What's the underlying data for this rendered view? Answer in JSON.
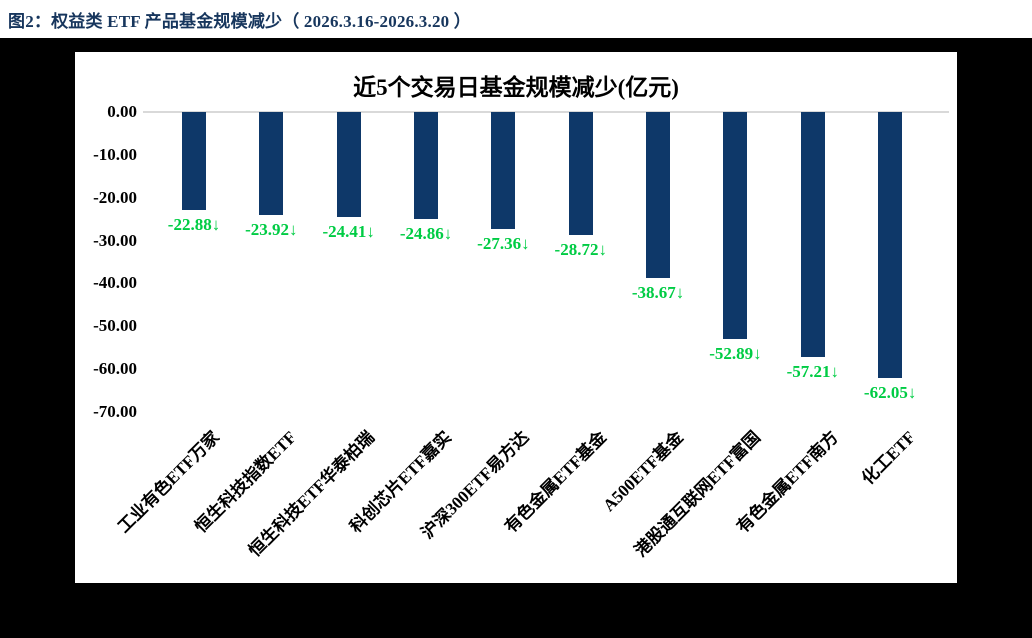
{
  "header": {
    "title": "图2：权益类 ETF 产品基金规模减少（ 2026.3.16-2026.3.20 ）"
  },
  "chart_data": {
    "type": "bar",
    "title": "近5个交易日基金规模减少(亿元)",
    "categories": [
      "工业有色ETF万家",
      "恒生科技指数ETF",
      "恒生科技ETF华泰柏瑞",
      "科创芯片ETF嘉实",
      "沪深300ETF易方达",
      "有色金属ETF基金",
      "A500ETF基金",
      "港股通互联网ETF富国",
      "有色金属ETF南方",
      "化工ETF"
    ],
    "values": [
      -22.88,
      -23.92,
      -24.41,
      -24.86,
      -27.36,
      -28.72,
      -38.67,
      -52.89,
      -57.21,
      -62.05
    ],
    "data_labels": [
      "-22.88↓",
      "-23.92↓",
      "-24.41↓",
      "-24.86↓",
      "-27.36↓",
      "-28.72↓",
      "-38.67↓",
      "-52.89↓",
      "-57.21↓",
      "-62.05↓"
    ],
    "y_ticks": [
      "0.00",
      "-10.00",
      "-20.00",
      "-30.00",
      "-40.00",
      "-50.00",
      "-60.00",
      "-70.00"
    ],
    "ylim": [
      -70,
      0
    ],
    "xlabel": "",
    "ylabel": "",
    "legend": "none",
    "grid": "zero-baseline-only",
    "bar_color": "#0E3869",
    "data_label_color": "#00CC44",
    "baseline_color": "#D9D9D9",
    "title_color": "#000000",
    "figure_title_color": "#17365D"
  }
}
